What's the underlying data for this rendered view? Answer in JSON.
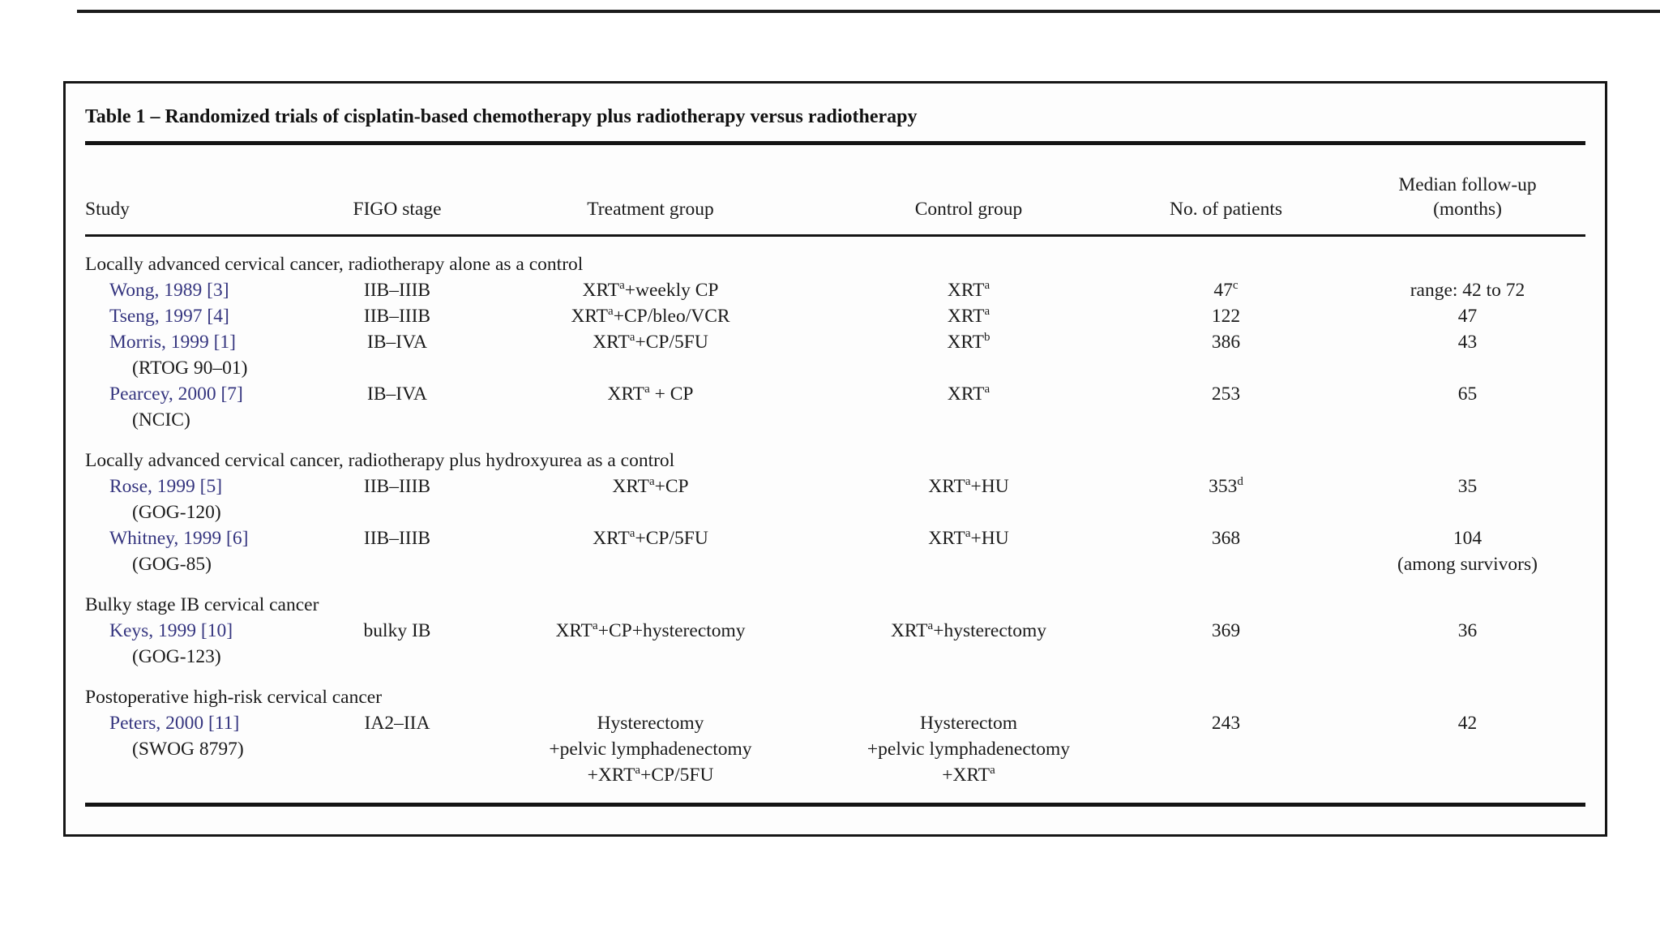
{
  "colors": {
    "citation": "#35357f",
    "text": "#1b1b1b",
    "rule": "#141414",
    "frame_border": "#161616",
    "paper": "#fdfdfd"
  },
  "table": {
    "title": "Table 1 – Randomized trials of cisplatin-based chemotherapy plus radiotherapy versus radiotherapy",
    "columns": [
      {
        "lines": [
          "Study"
        ]
      },
      {
        "lines": [
          "FIGO stage"
        ]
      },
      {
        "lines": [
          "Treatment group"
        ]
      },
      {
        "lines": [
          "Control group"
        ]
      },
      {
        "lines": [
          "No. of patients"
        ]
      },
      {
        "lines": [
          "Median follow-up",
          "(months)"
        ]
      }
    ],
    "sections": [
      {
        "header": "Locally advanced cervical cancer, radiotherapy alone as a control",
        "rows": [
          {
            "study": [
              "Wong, 1989 [3]"
            ],
            "figo": "IIB–IIIB",
            "treatment": [
              "XRT^a+weekly CP"
            ],
            "control": [
              "XRT^a"
            ],
            "patients": "47^c",
            "followup": [
              "range: 42 to 72"
            ]
          },
          {
            "study": [
              "Tseng, 1997 [4]"
            ],
            "figo": "IIB–IIIB",
            "treatment": [
              "XRT^a+CP/bleo/VCR"
            ],
            "control": [
              "XRT^a"
            ],
            "patients": "122",
            "followup": [
              "47"
            ]
          },
          {
            "study": [
              "Morris, 1999 [1]",
              "(RTOG 90–01)"
            ],
            "figo": "IB–IVA",
            "treatment": [
              "XRT^a+CP/5FU"
            ],
            "control": [
              "XRT^b"
            ],
            "patients": "386",
            "followup": [
              "43"
            ]
          },
          {
            "study": [
              "Pearcey, 2000 [7]",
              "(NCIC)"
            ],
            "figo": "IB–IVA",
            "treatment": [
              "XRT^a + CP"
            ],
            "control": [
              "XRT^a"
            ],
            "patients": "253",
            "followup": [
              "65"
            ]
          }
        ]
      },
      {
        "header": "Locally advanced cervical cancer, radiotherapy plus hydroxyurea as a control",
        "rows": [
          {
            "study": [
              "Rose, 1999 [5]",
              "(GOG-120)"
            ],
            "figo": "IIB–IIIB",
            "treatment": [
              "XRT^a+CP"
            ],
            "control": [
              "XRT^a+HU"
            ],
            "patients": "353^d",
            "followup": [
              "35"
            ]
          },
          {
            "study": [
              "Whitney, 1999 [6]",
              "(GOG-85)"
            ],
            "figo": "IIB–IIIB",
            "treatment": [
              "XRT^a+CP/5FU"
            ],
            "control": [
              "XRT^a+HU"
            ],
            "patients": "368",
            "followup": [
              "104",
              "(among survivors)"
            ]
          }
        ]
      },
      {
        "header": "Bulky stage IB cervical cancer",
        "rows": [
          {
            "study": [
              "Keys, 1999 [10]",
              "(GOG-123)"
            ],
            "figo": "bulky IB",
            "treatment": [
              "XRT^a+CP+hysterectomy"
            ],
            "control": [
              "XRT^a+hysterectomy"
            ],
            "patients": "369",
            "followup": [
              "36"
            ]
          }
        ]
      },
      {
        "header": "Postoperative high-risk cervical cancer",
        "rows": [
          {
            "study": [
              "Peters, 2000 [11]",
              "(SWOG 8797)"
            ],
            "figo": "IA2–IIA",
            "treatment": [
              "Hysterectomy",
              "+pelvic lymphadenectomy",
              "+XRT^a+CP/5FU"
            ],
            "control": [
              "Hysterectom",
              "+pelvic lymphadenectomy",
              "+XRT^a"
            ],
            "patients": "243",
            "followup": [
              "42"
            ]
          }
        ]
      }
    ]
  }
}
